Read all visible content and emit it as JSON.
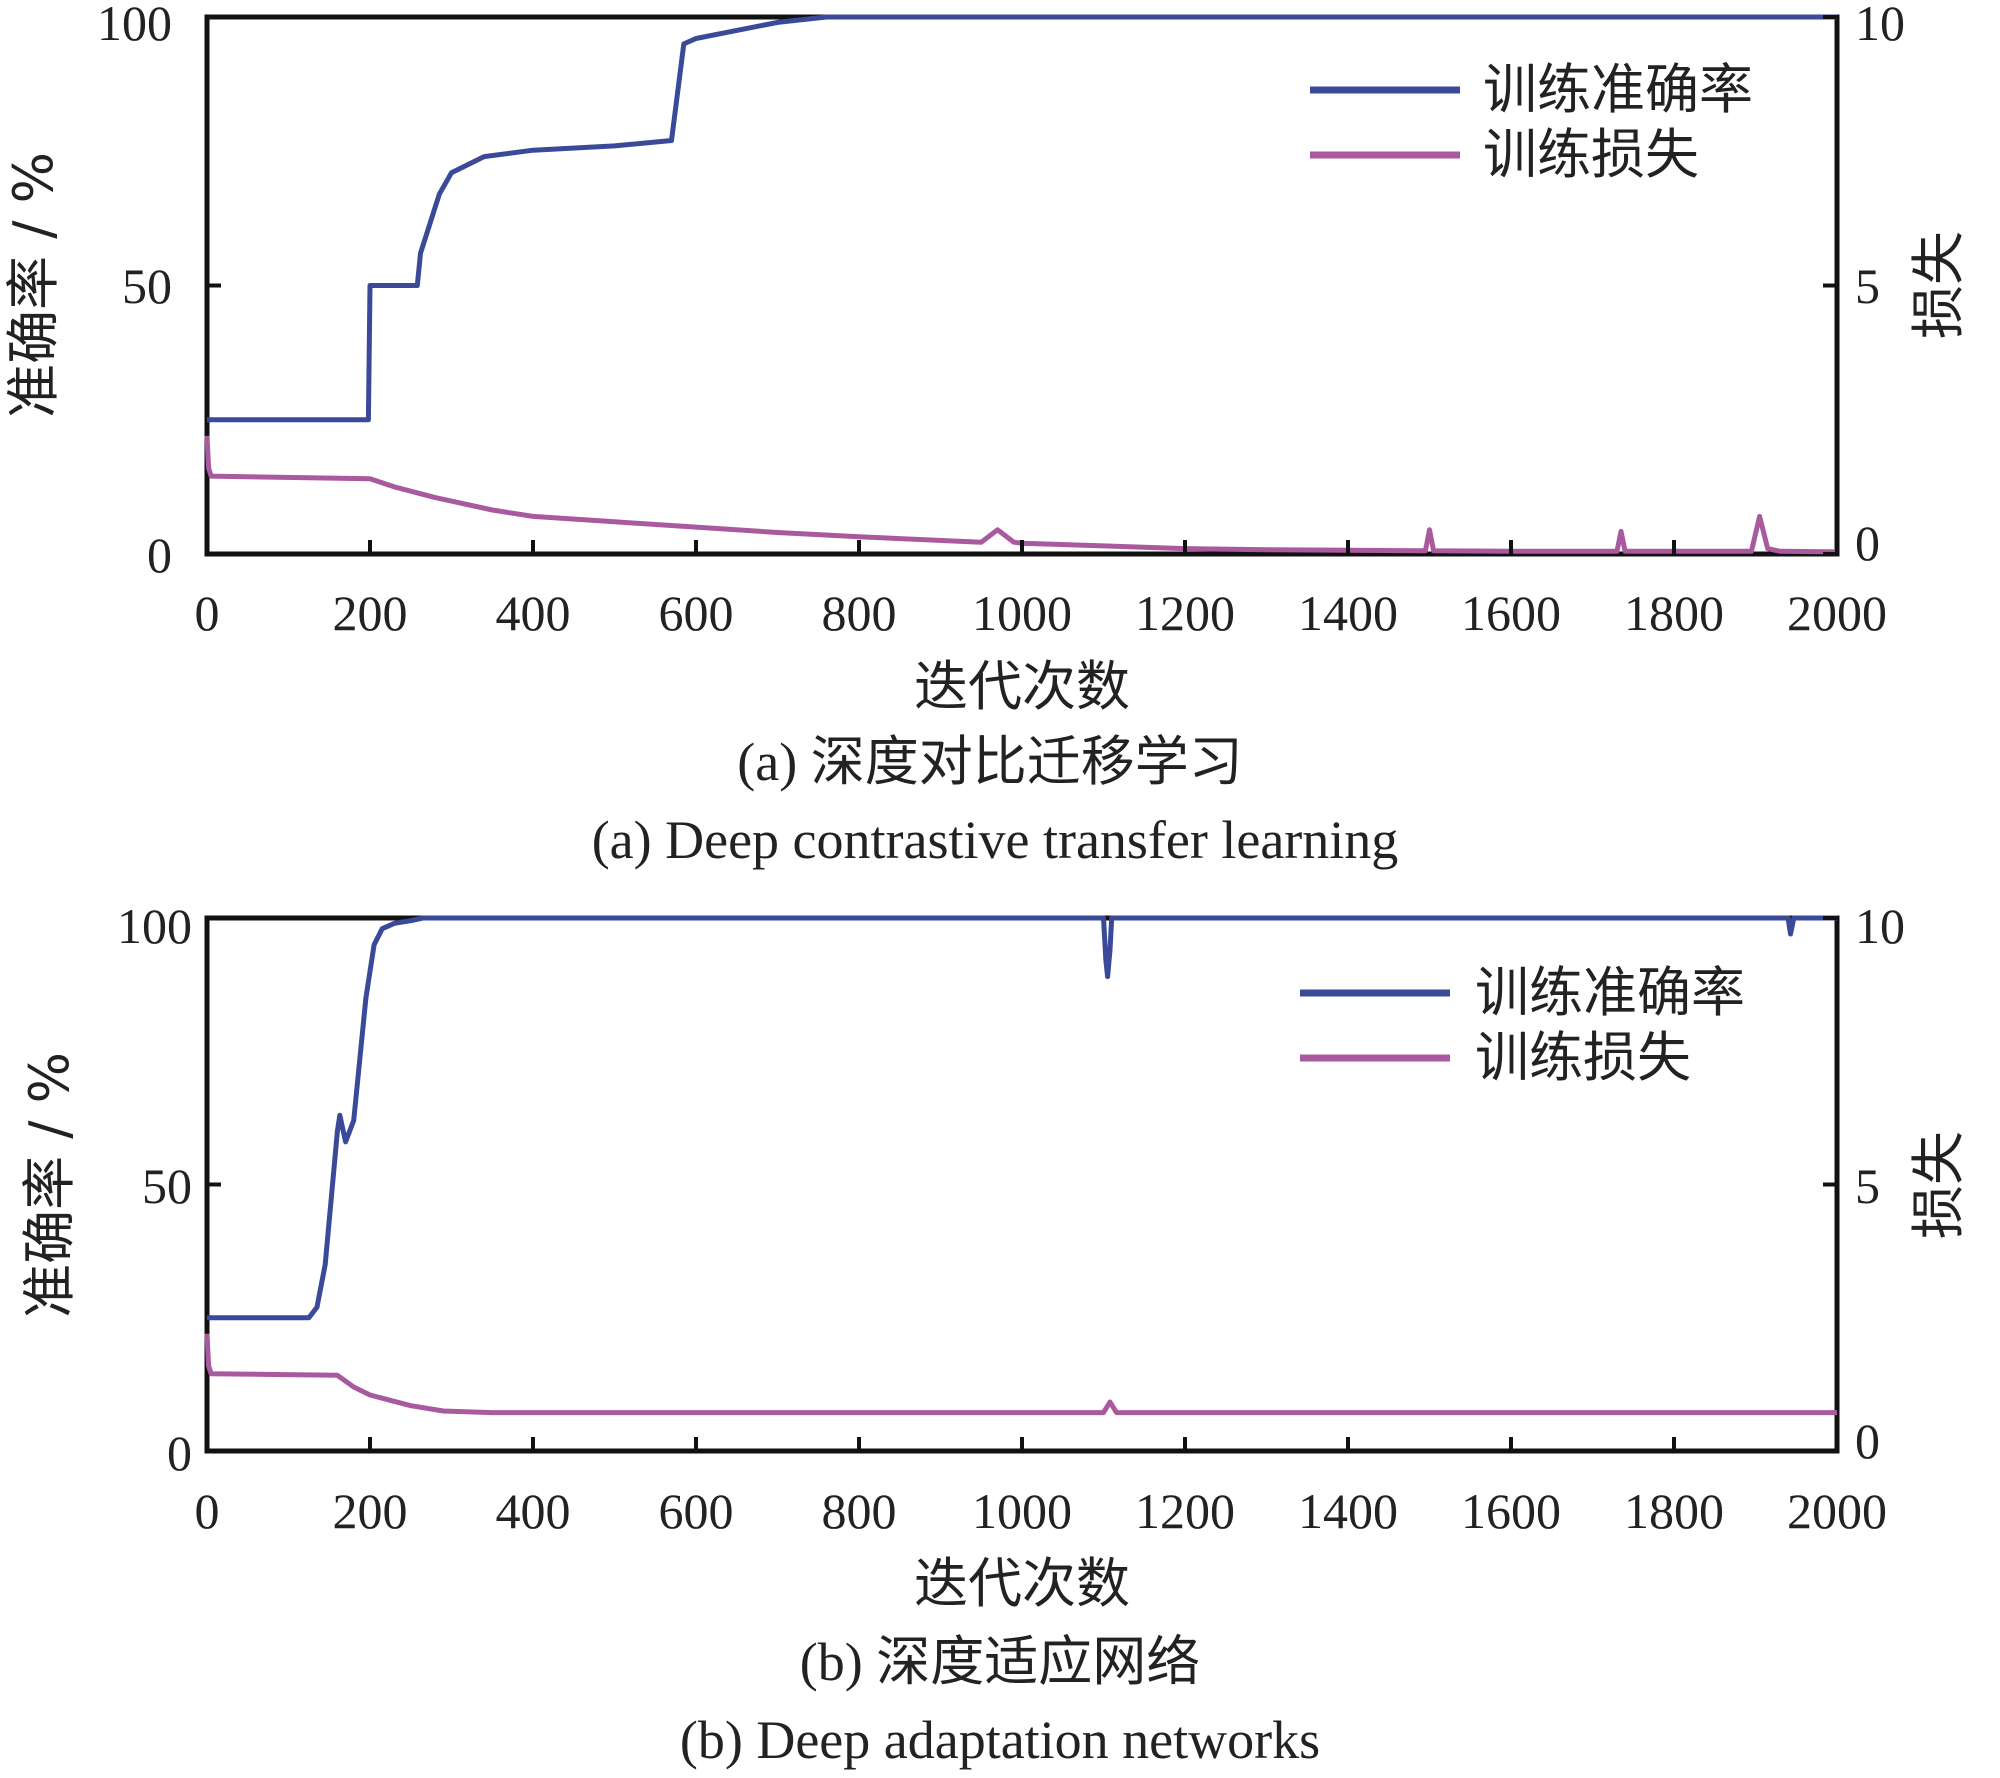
{
  "chart_data": [
    {
      "type": "line",
      "xlabel": "迭代次数",
      "ylabel_left": "准确率 / %",
      "ylabel_right": "损失",
      "caption_cn": "(a)  深度对比迁移学习",
      "caption_en": "(a)  Deep contrastive transfer learning",
      "xlim": [
        0,
        2000
      ],
      "ylim_left": [
        0,
        100
      ],
      "ylim_right": [
        0,
        10
      ],
      "x_ticks": [
        "0",
        "200",
        "400",
        "600",
        "800",
        "1000",
        "1200",
        "1400",
        "1600",
        "1800",
        "2000"
      ],
      "yl_ticks": [
        "0",
        "50",
        "100"
      ],
      "yr_ticks": [
        "0",
        "5",
        "10"
      ],
      "grid": false,
      "legend_position": "top-right",
      "colors": {
        "accuracy": "#3a4a98",
        "loss": "#a95a9e"
      },
      "series": [
        {
          "name": "训练准确率",
          "axis": "left",
          "x": [
            0,
            198,
            200,
            258,
            262,
            285,
            300,
            340,
            400,
            500,
            570,
            585,
            600,
            650,
            700,
            760,
            800,
            1000,
            1500,
            2000
          ],
          "y": [
            25,
            25,
            50,
            50,
            56,
            67,
            71,
            74,
            75.2,
            76,
            77,
            95,
            96,
            97.5,
            99,
            100,
            100,
            100,
            100,
            100
          ]
        },
        {
          "name": "训练损失",
          "axis": "right",
          "x": [
            0,
            2,
            5,
            200,
            230,
            280,
            350,
            400,
            500,
            600,
            700,
            800,
            950,
            970,
            990,
            1000,
            1100,
            1200,
            1300,
            1400,
            1495,
            1500,
            1505,
            1600,
            1730,
            1735,
            1740,
            1800,
            1895,
            1905,
            1915,
            1930,
            2000
          ],
          "y": [
            2.2,
            1.6,
            1.45,
            1.4,
            1.25,
            1.05,
            0.82,
            0.7,
            0.6,
            0.5,
            0.4,
            0.32,
            0.22,
            0.45,
            0.22,
            0.2,
            0.15,
            0.1,
            0.08,
            0.07,
            0.06,
            0.45,
            0.06,
            0.05,
            0.05,
            0.42,
            0.05,
            0.05,
            0.05,
            0.7,
            0.1,
            0.05,
            0.04
          ]
        }
      ]
    },
    {
      "type": "line",
      "xlabel": "迭代次数",
      "ylabel_left": "准确率 / %",
      "ylabel_right": "损失",
      "caption_cn": "(b)  深度适应网络",
      "caption_en": "(b)  Deep adaptation networks",
      "xlim": [
        0,
        2000
      ],
      "ylim_left": [
        0,
        100
      ],
      "ylim_right": [
        0,
        10
      ],
      "x_ticks": [
        "0",
        "200",
        "400",
        "600",
        "800",
        "1000",
        "1200",
        "1400",
        "1600",
        "1800",
        "2000"
      ],
      "yl_ticks": [
        "0",
        "50",
        "100"
      ],
      "yr_ticks": [
        "0",
        "5",
        "10"
      ],
      "grid": false,
      "legend_position": "top-right",
      "colors": {
        "accuracy": "#3a4a98",
        "loss": "#a95a9e"
      },
      "series": [
        {
          "name": "训练准确率",
          "axis": "left",
          "x": [
            0,
            125,
            135,
            145,
            160,
            163,
            170,
            180,
            195,
            205,
            215,
            230,
            250,
            265,
            280,
            300,
            600,
            1100,
            1103,
            1105,
            1108,
            1110,
            1800,
            1940,
            1943,
            1947,
            2000
          ],
          "y": [
            25,
            25,
            27,
            35,
            60,
            63,
            58,
            62,
            85,
            95,
            98,
            99,
            99.5,
            100,
            100,
            100,
            100,
            100,
            92,
            89,
            94,
            100,
            100,
            100,
            97,
            100,
            100
          ],
          "min": 89
        },
        {
          "name": "训练损失",
          "axis": "right",
          "x": [
            0,
            2,
            5,
            160,
            180,
            200,
            250,
            290,
            350,
            1100,
            1108,
            1116,
            2000
          ],
          "y": [
            2.2,
            1.6,
            1.45,
            1.42,
            1.2,
            1.05,
            0.85,
            0.75,
            0.72,
            0.72,
            0.92,
            0.72,
            0.72
          ]
        }
      ]
    }
  ]
}
